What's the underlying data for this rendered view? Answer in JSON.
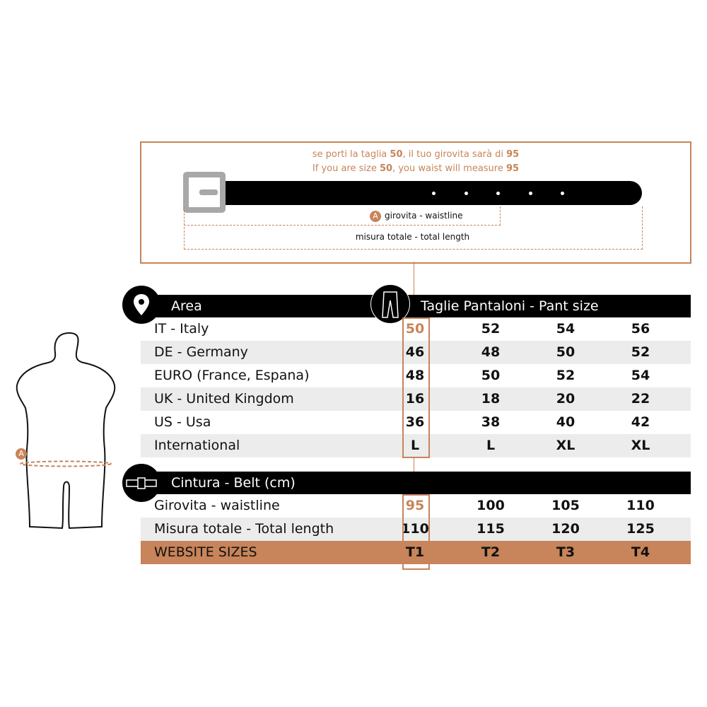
{
  "note": {
    "it": [
      "se porti la taglia ",
      "50",
      ", il tuo girovita sarà di ",
      "95"
    ],
    "en": [
      "If you are size ",
      "50",
      ", you waist will measure ",
      "95"
    ]
  },
  "belt_diagram": {
    "marker": "A",
    "waistline_label": "girovita - waistline",
    "total_label": "misura totale - total length"
  },
  "figure": {
    "marker": "A"
  },
  "pants_table": {
    "area_header": "Area",
    "size_header": "Taglie Pantaloni - Pant size",
    "area_icon": "location-pin-icon",
    "size_icon": "pants-icon",
    "rows": [
      {
        "name": "IT - Italy",
        "values": [
          "50",
          "52",
          "54",
          "56"
        ]
      },
      {
        "name": "DE - Germany",
        "values": [
          "46",
          "48",
          "50",
          "52"
        ]
      },
      {
        "name": "EURO (France, Espana)",
        "values": [
          "48",
          "50",
          "52",
          "54"
        ]
      },
      {
        "name": "UK - United Kingdom",
        "values": [
          "16",
          "18",
          "20",
          "22"
        ]
      },
      {
        "name": "US - Usa",
        "values": [
          "36",
          "38",
          "40",
          "42"
        ]
      },
      {
        "name": "International",
        "values": [
          "L",
          "L",
          "XL",
          "XL"
        ]
      }
    ]
  },
  "belt_table": {
    "header": "Cintura - Belt  (cm)",
    "icon": "belt-icon",
    "rows": [
      {
        "name": "Girovita - waistline",
        "values": [
          "95",
          "100",
          "105",
          "110"
        ]
      },
      {
        "name": "Misura totale - Total length",
        "values": [
          "110",
          "115",
          "120",
          "125"
        ]
      },
      {
        "name": "WEBSITE SIZES",
        "values": [
          "T1",
          "T2",
          "T3",
          "T4"
        ]
      }
    ]
  },
  "colors": {
    "accent": "#c8845a",
    "header": "#000000",
    "stripe": "#ececec",
    "buckle": "#a8a8a8"
  }
}
